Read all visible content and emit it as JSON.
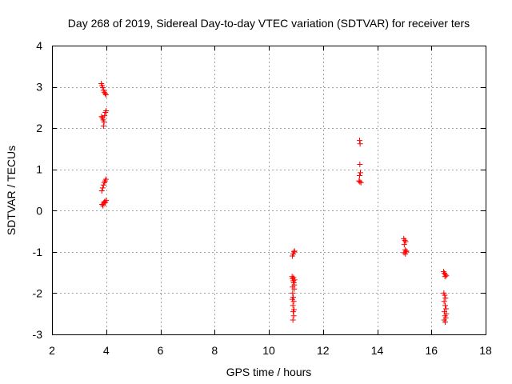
{
  "chart_data": {
    "type": "scatter",
    "title": "Day 268 of 2019, Sidereal Day-to-day VTEC variation (SDTVAR) for receiver ters",
    "xlabel": "GPS time / hours",
    "ylabel": "SDTVAR / TECUs",
    "xlim": [
      2,
      18
    ],
    "ylim": [
      -3,
      4
    ],
    "xticks": [
      2,
      4,
      6,
      8,
      10,
      12,
      14,
      16,
      18
    ],
    "yticks": [
      -3,
      -2,
      -1,
      0,
      1,
      2,
      3,
      4
    ],
    "grid": true,
    "marker": "+",
    "color": "#ff0000",
    "series": [
      {
        "name": "SDTVAR",
        "points": [
          [
            3.82,
            3.08
          ],
          [
            3.85,
            3.03
          ],
          [
            3.88,
            2.98
          ],
          [
            3.9,
            2.92
          ],
          [
            3.93,
            2.87
          ],
          [
            3.96,
            2.84
          ],
          [
            3.99,
            2.81
          ],
          [
            3.83,
            2.28
          ],
          [
            3.86,
            2.25
          ],
          [
            3.89,
            2.2
          ],
          [
            3.92,
            2.15
          ],
          [
            3.94,
            2.3
          ],
          [
            3.97,
            2.38
          ],
          [
            4.0,
            2.42
          ],
          [
            3.9,
            2.05
          ],
          [
            3.84,
            0.48
          ],
          [
            3.87,
            0.55
          ],
          [
            3.9,
            0.62
          ],
          [
            3.93,
            0.68
          ],
          [
            3.96,
            0.72
          ],
          [
            3.99,
            0.76
          ],
          [
            3.85,
            0.15
          ],
          [
            3.88,
            0.12
          ],
          [
            3.91,
            0.18
          ],
          [
            3.94,
            0.22
          ],
          [
            3.97,
            0.2
          ],
          [
            4.0,
            0.25
          ],
          [
            10.87,
            -1.1
          ],
          [
            10.9,
            -1.05
          ],
          [
            10.93,
            -1.0
          ],
          [
            10.95,
            -0.98
          ],
          [
            10.86,
            -1.6
          ],
          [
            10.88,
            -1.65
          ],
          [
            10.9,
            -1.7
          ],
          [
            10.92,
            -1.75
          ],
          [
            10.94,
            -1.8
          ],
          [
            10.88,
            -1.85
          ],
          [
            10.91,
            -1.62
          ],
          [
            10.95,
            -1.68
          ],
          [
            10.88,
            -2.0
          ],
          [
            10.9,
            -2.1
          ],
          [
            10.92,
            -2.2
          ],
          [
            10.89,
            -2.3
          ],
          [
            10.93,
            -2.4
          ],
          [
            10.9,
            -2.45
          ],
          [
            10.92,
            -2.55
          ],
          [
            10.89,
            -2.65
          ],
          [
            10.94,
            -1.9
          ],
          [
            10.87,
            -2.15
          ],
          [
            13.35,
            1.7
          ],
          [
            13.37,
            1.62
          ],
          [
            13.36,
            1.12
          ],
          [
            13.38,
            0.92
          ],
          [
            13.35,
            0.85
          ],
          [
            13.33,
            0.72
          ],
          [
            13.36,
            0.7
          ],
          [
            13.4,
            0.68
          ],
          [
            14.98,
            -0.68
          ],
          [
            15.02,
            -0.72
          ],
          [
            15.05,
            -0.75
          ],
          [
            15.0,
            -0.82
          ],
          [
            15.03,
            -0.95
          ],
          [
            15.06,
            -1.0
          ],
          [
            14.99,
            -1.02
          ],
          [
            15.04,
            -1.05
          ],
          [
            15.08,
            -0.98
          ],
          [
            16.45,
            -1.48
          ],
          [
            16.48,
            -1.52
          ],
          [
            16.52,
            -1.55
          ],
          [
            16.55,
            -1.58
          ],
          [
            16.5,
            -1.6
          ],
          [
            16.46,
            -2.0
          ],
          [
            16.49,
            -2.05
          ],
          [
            16.52,
            -2.12
          ],
          [
            16.47,
            -2.2
          ],
          [
            16.51,
            -2.3
          ],
          [
            16.54,
            -2.38
          ],
          [
            16.48,
            -2.45
          ],
          [
            16.5,
            -2.55
          ],
          [
            16.53,
            -2.6
          ],
          [
            16.47,
            -2.65
          ],
          [
            16.51,
            -2.7
          ],
          [
            16.55,
            -2.5
          ]
        ]
      }
    ]
  }
}
